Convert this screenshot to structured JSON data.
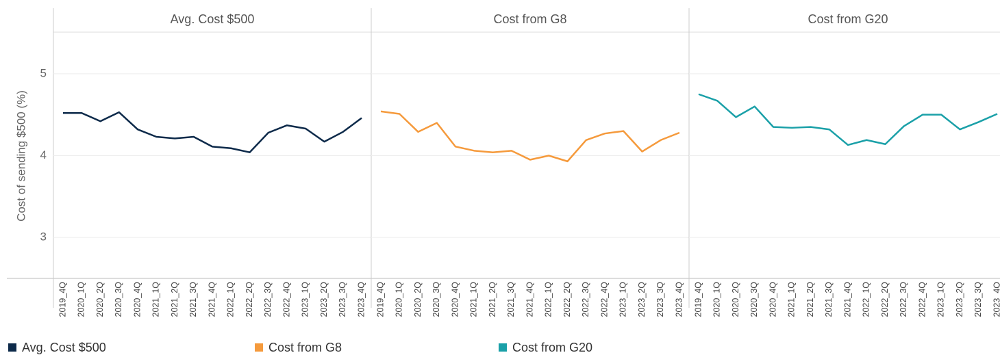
{
  "chart_data": [
    {
      "type": "line",
      "title": "Avg. Cost $500",
      "ylabel": "Cost of sending $500 (%)",
      "categories": [
        "2019_4Q",
        "2020_1Q",
        "2020_2Q",
        "2020_3Q",
        "2020_4Q",
        "2021_1Q",
        "2021_2Q",
        "2021_3Q",
        "2021_4Q",
        "2022_1Q",
        "2022_2Q",
        "2022_3Q",
        "2022_4Q",
        "2023_1Q",
        "2023_2Q",
        "2023_3Q",
        "2023_4Q"
      ],
      "series": [
        {
          "name": "Avg. Cost $500",
          "color": "#0d2a4a",
          "values": [
            4.52,
            4.52,
            4.42,
            4.53,
            4.32,
            4.23,
            4.21,
            4.23,
            4.11,
            4.09,
            4.04,
            4.28,
            4.37,
            4.33,
            4.17,
            4.29,
            4.46
          ]
        }
      ],
      "ylim": [
        2.5,
        5.5
      ],
      "yticks": [
        3,
        4,
        5
      ],
      "grid": true
    },
    {
      "type": "line",
      "title": "Cost from G8",
      "categories": [
        "2019_4Q",
        "2020_1Q",
        "2020_2Q",
        "2020_3Q",
        "2020_4Q",
        "2021_1Q",
        "2021_2Q",
        "2021_3Q",
        "2021_4Q",
        "2022_1Q",
        "2022_2Q",
        "2022_3Q",
        "2022_4Q",
        "2023_1Q",
        "2023_2Q",
        "2023_3Q",
        "2023_4Q"
      ],
      "series": [
        {
          "name": "Cost from G8",
          "color": "#f59a3c",
          "values": [
            4.54,
            4.51,
            4.29,
            4.4,
            4.11,
            4.06,
            4.04,
            4.06,
            3.95,
            4.0,
            3.93,
            4.19,
            4.27,
            4.3,
            4.05,
            4.19,
            4.28
          ]
        }
      ],
      "ylim": [
        2.5,
        5.5
      ],
      "yticks": [
        3,
        4,
        5
      ],
      "grid": true
    },
    {
      "type": "line",
      "title": "Cost from G20",
      "categories": [
        "2019_4Q",
        "2020_1Q",
        "2020_2Q",
        "2020_3Q",
        "2020_4Q",
        "2021_1Q",
        "2021_2Q",
        "2021_3Q",
        "2021_4Q",
        "2022_1Q",
        "2022_2Q",
        "2022_3Q",
        "2022_4Q",
        "2023_1Q",
        "2023_2Q",
        "2023_3Q",
        "2023_4Q"
      ],
      "series": [
        {
          "name": "Cost from G20",
          "color": "#1aa0a8",
          "values": [
            4.75,
            4.67,
            4.47,
            4.6,
            4.35,
            4.34,
            4.35,
            4.32,
            4.13,
            4.19,
            4.14,
            4.36,
            4.5,
            4.5,
            4.32,
            4.41,
            4.51
          ]
        }
      ],
      "ylim": [
        2.5,
        5.5
      ],
      "yticks": [
        3,
        4,
        5
      ],
      "grid": true
    }
  ]
}
